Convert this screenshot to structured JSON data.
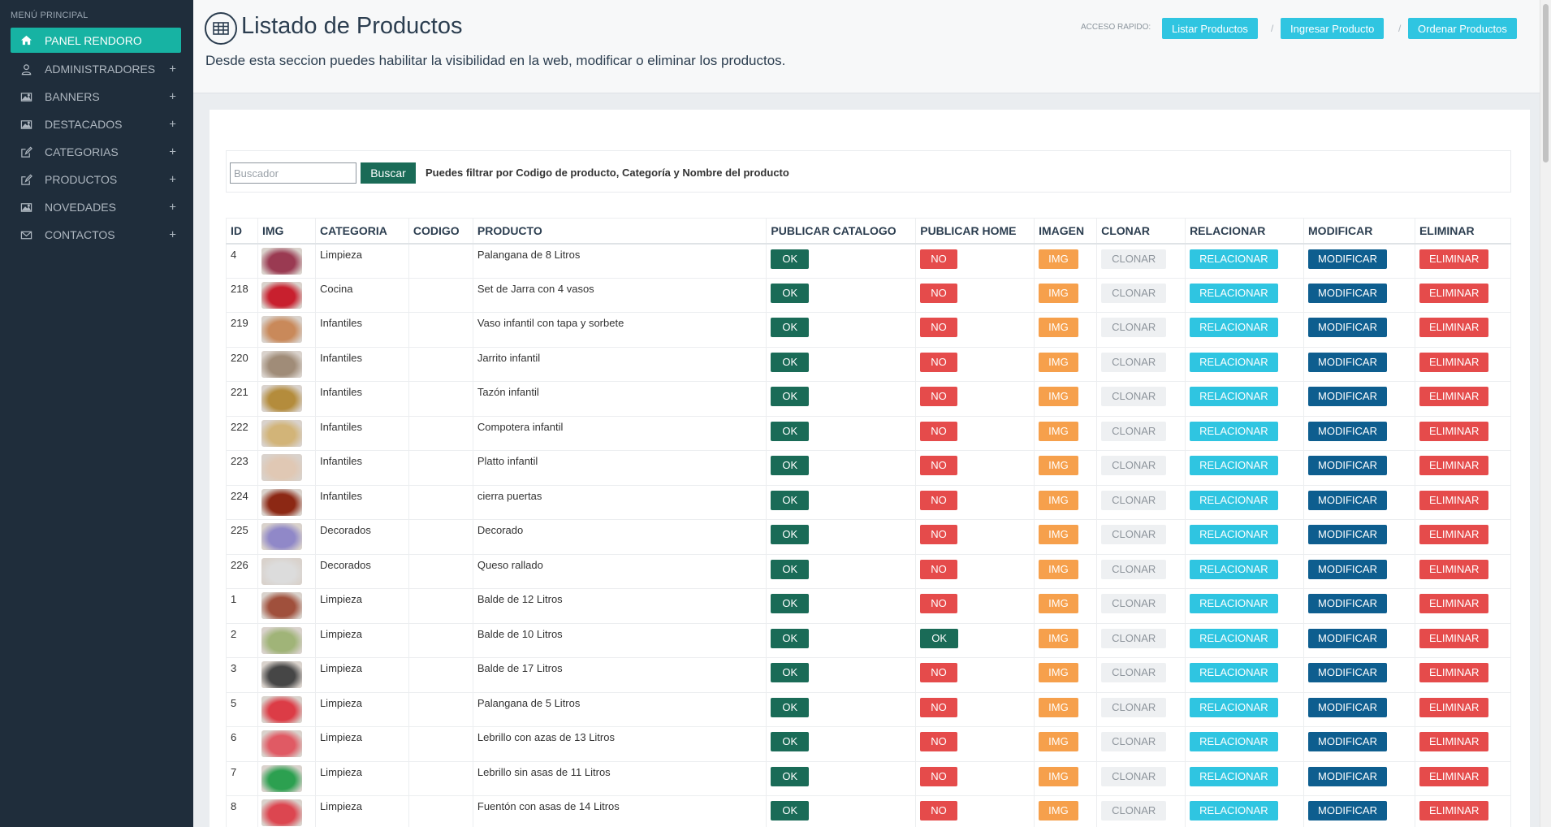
{
  "sidebar": {
    "heading": "MENÚ PRINCIPAL",
    "items": [
      {
        "label": "PANEL RENDORO",
        "icon": "home-icon"
      },
      {
        "label": "ADMINISTRADORES",
        "icon": "user-icon"
      },
      {
        "label": "BANNERS",
        "icon": "image-icon"
      },
      {
        "label": "DESTACADOS",
        "icon": "image-icon"
      },
      {
        "label": "CATEGORIAS",
        "icon": "edit-icon"
      },
      {
        "label": "PRODUCTOS",
        "icon": "edit-icon"
      },
      {
        "label": "NOVEDADES",
        "icon": "image-icon"
      },
      {
        "label": "CONTACTOS",
        "icon": "envelope-icon"
      }
    ],
    "expand_symbol": "+"
  },
  "header": {
    "title": "Listado de Productos",
    "subtitle": "Desde esta seccion puedes habilitar la visibilidad en la web, modificar o eliminar los productos.",
    "quick_access_label": "ACCESO RAPIDO:",
    "quick_links": [
      "Listar Productos",
      "Ingresar Producto",
      "Ordenar Productos"
    ],
    "separator": "/"
  },
  "search": {
    "placeholder": "Buscador",
    "value": "",
    "button_label": "Buscar",
    "hint": "Puedes filtrar por Codigo de producto, Categoría y Nombre del producto"
  },
  "table": {
    "columns": [
      "ID",
      "IMG",
      "CATEGORIA",
      "CODIGO",
      "PRODUCTO",
      "PUBLICAR CATALOGO",
      "PUBLICAR HOME",
      "IMAGEN",
      "CLONAR",
      "RELACIONAR",
      "MODIFICAR",
      "ELIMINAR"
    ],
    "rows": [
      {
        "id": "4",
        "category": "Limpieza",
        "code": "",
        "product": "Palangana de 8 Litros",
        "catalog": "OK",
        "home": "NO",
        "thumb": "#9a3a52"
      },
      {
        "id": "218",
        "category": "Cocina",
        "code": "",
        "product": "Set de Jarra con 4 vasos",
        "catalog": "OK",
        "home": "NO",
        "thumb": "#c8202e"
      },
      {
        "id": "219",
        "category": "Infantiles",
        "code": "",
        "product": "Vaso infantil con tapa y sorbete",
        "catalog": "OK",
        "home": "NO",
        "thumb": "#c9895a"
      },
      {
        "id": "220",
        "category": "Infantiles",
        "code": "",
        "product": "Jarrito infantil",
        "catalog": "OK",
        "home": "NO",
        "thumb": "#a08c78"
      },
      {
        "id": "221",
        "category": "Infantiles",
        "code": "",
        "product": "Tazón infantil",
        "catalog": "OK",
        "home": "NO",
        "thumb": "#b48c3c"
      },
      {
        "id": "222",
        "category": "Infantiles",
        "code": "",
        "product": "Compotera infantil",
        "catalog": "OK",
        "home": "NO",
        "thumb": "#d2b478"
      },
      {
        "id": "223",
        "category": "Infantiles",
        "code": "",
        "product": "Platto infantil",
        "catalog": "OK",
        "home": "NO",
        "thumb": "#e0c8b4"
      },
      {
        "id": "224",
        "category": "Infantiles",
        "code": "",
        "product": "cierra puertas",
        "catalog": "OK",
        "home": "NO",
        "thumb": "#8c2814"
      },
      {
        "id": "225",
        "category": "Decorados",
        "code": "",
        "product": "Decorado",
        "catalog": "OK",
        "home": "NO",
        "thumb": "#9088c8"
      },
      {
        "id": "226",
        "category": "Decorados",
        "code": "",
        "product": "Queso rallado",
        "catalog": "OK",
        "home": "NO",
        "thumb": "#dcdcdc"
      },
      {
        "id": "1",
        "category": "Limpieza",
        "code": "",
        "product": "Balde de 12 Litros",
        "catalog": "OK",
        "home": "NO",
        "thumb": "#a0503c"
      },
      {
        "id": "2",
        "category": "Limpieza",
        "code": "",
        "product": "Balde de 10 Litros",
        "catalog": "OK",
        "home": "OK",
        "thumb": "#a0b478"
      },
      {
        "id": "3",
        "category": "Limpieza",
        "code": "",
        "product": "Balde de 17 Litros",
        "catalog": "OK",
        "home": "NO",
        "thumb": "#464646"
      },
      {
        "id": "5",
        "category": "Limpieza",
        "code": "",
        "product": "Palangana de 5 Litros",
        "catalog": "OK",
        "home": "NO",
        "thumb": "#dc3c46"
      },
      {
        "id": "6",
        "category": "Limpieza",
        "code": "",
        "product": "Lebrillo con azas de 13 Litros",
        "catalog": "OK",
        "home": "NO",
        "thumb": "#e05a64"
      },
      {
        "id": "7",
        "category": "Limpieza",
        "code": "",
        "product": "Lebrillo sin asas de 11 Litros",
        "catalog": "OK",
        "home": "NO",
        "thumb": "#2ca050"
      },
      {
        "id": "8",
        "category": "Limpieza",
        "code": "",
        "product": "Fuentón con asas de 14 Litros",
        "catalog": "OK",
        "home": "NO",
        "thumb": "#dc4650"
      }
    ],
    "action_labels": {
      "image": "IMG",
      "clone": "CLONAR",
      "relate": "RELACIONAR",
      "modify": "MODIFICAR",
      "delete": "ELIMINAR"
    }
  },
  "colors": {
    "sidebar_bg": "#1f2d3b",
    "accent": "#17b3a3",
    "ok_green": "#1a6b57",
    "no_red": "#e54b4b",
    "img_orange": "#f6a04c",
    "relate_cyan": "#2fc5e1",
    "modify_blue": "#0e5e8f"
  }
}
